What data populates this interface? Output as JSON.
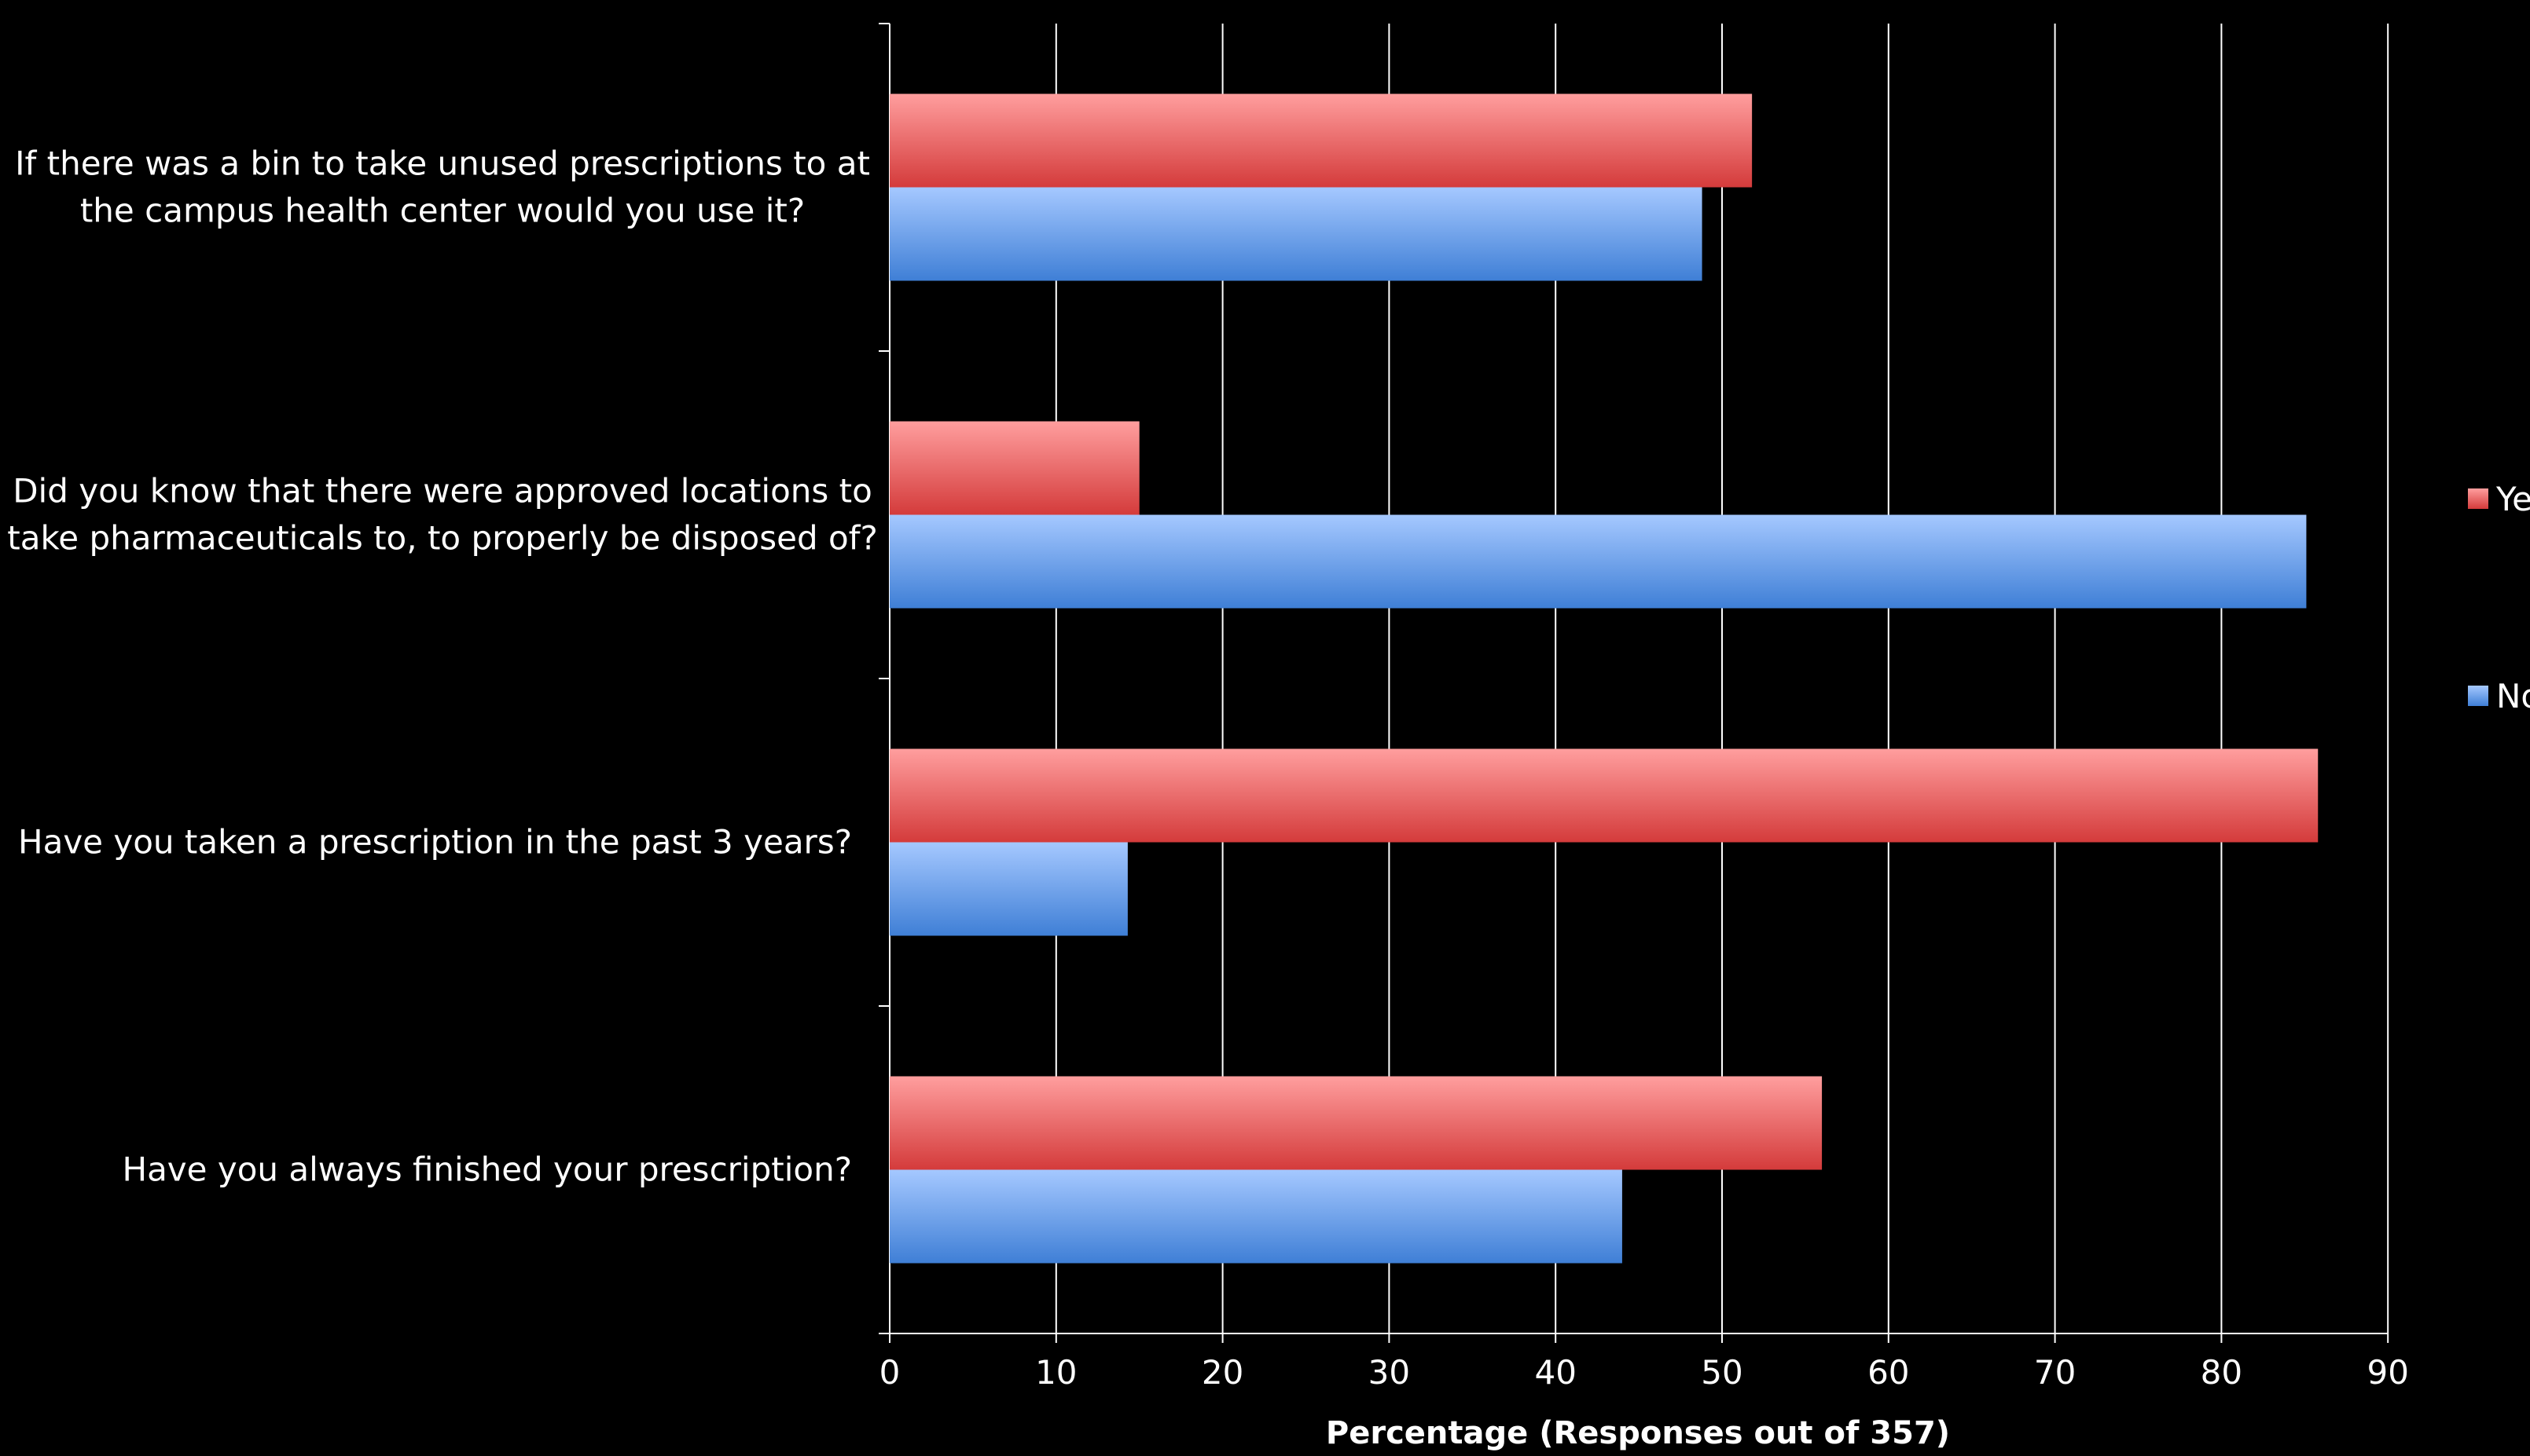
{
  "chart_data": {
    "type": "bar",
    "orientation": "horizontal",
    "categories": [
      [
        "If there was a bin to take unused prescriptions to at",
        "the campus health center would you use it?"
      ],
      [
        "Did you know that there were approved locations to",
        "take pharmaceuticals to, to properly be disposed of?"
      ],
      [
        "Have you taken a prescription in the past 3 years?"
      ],
      [
        "Have you always finished your prescription?"
      ]
    ],
    "series": [
      {
        "name": "Ye",
        "color": "#e04848",
        "values": [
          51.8,
          15.0,
          85.8,
          56.0
        ]
      },
      {
        "name": "No",
        "color": "#4a86e0",
        "values": [
          48.8,
          85.1,
          14.3,
          44.0
        ]
      }
    ],
    "xlabel": "Percentage (Responses out of 357)",
    "xlim": [
      0,
      90
    ],
    "xticks": [
      0,
      10,
      20,
      30,
      40,
      50,
      60,
      70,
      80,
      90
    ],
    "grid": true,
    "legend_position": "right"
  }
}
